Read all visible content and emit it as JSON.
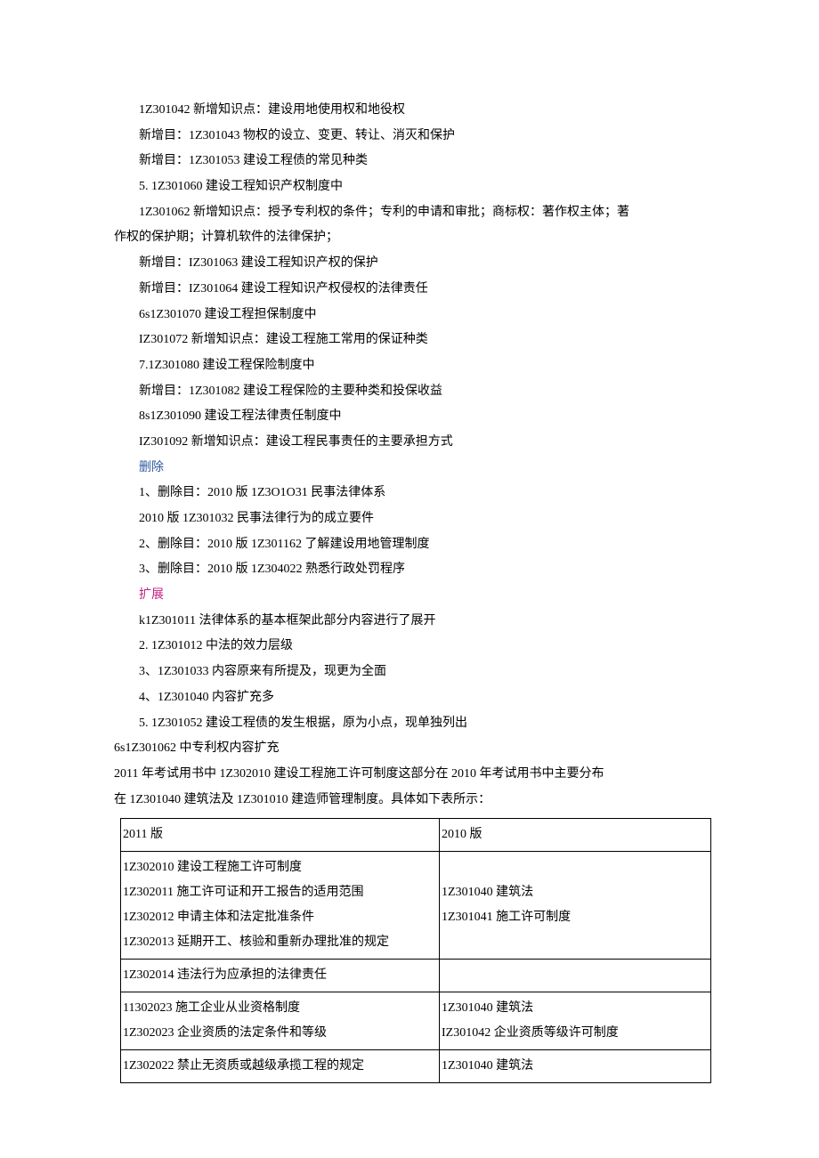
{
  "lines": [
    {
      "text": "1Z301042 新增知识点：建设用地使用权和地役权",
      "cls": "para"
    },
    {
      "text": "新增目：1Z301043 物权的设立、变更、转让、消灭和保护",
      "cls": "para"
    },
    {
      "text": "新增目：1Z301053 建设工程债的常见种类",
      "cls": "para"
    },
    {
      "text": "5.   1Z301060 建设工程知识产权制度中",
      "cls": "para"
    },
    {
      "text": "1Z301062 新增知识点：授予专利权的条件；专利的申请和审批；商标权：著作权主体；著",
      "cls": "para"
    },
    {
      "text": "作权的保护期；计算机软件的法律保护；",
      "cls": "para-noindent"
    },
    {
      "text": "新增目：IZ301063 建设工程知识产权的保护",
      "cls": "para"
    },
    {
      "text": "新增目：IZ301064 建设工程知识产权侵权的法律责任",
      "cls": "para"
    },
    {
      "text": "6s1Z301070 建设工程担保制度中",
      "cls": "para"
    },
    {
      "text": "IZ301072 新增知识点：建设工程施工常用的保证种类",
      "cls": "para"
    },
    {
      "text": "7.1Z301080 建设工程保险制度中",
      "cls": "para"
    },
    {
      "text": "新增目：1Z301082 建设工程保险的主要种类和投保收益",
      "cls": "para"
    },
    {
      "text": "8s1Z301090 建设工程法律责任制度中",
      "cls": "para"
    },
    {
      "text": "IZ301092 新增知识点：建设工程民事责任的主要承担方式",
      "cls": "para"
    },
    {
      "text": "删除",
      "cls": "para blue"
    },
    {
      "text": "1、删除目：2010 版 1Z3O1O31 民事法律体系",
      "cls": "para"
    },
    {
      "text": "2010 版 1Z301032 民事法律行为的成立要件",
      "cls": "para"
    },
    {
      "text": "2、删除目：2010 版 1Z301162 了解建设用地管理制度",
      "cls": "para"
    },
    {
      "text": "3、删除目：2010 版 1Z304022 熟悉行政处罚程序",
      "cls": "para"
    },
    {
      "text": "扩展",
      "cls": "para magenta"
    },
    {
      "text": "k1Z301011 法律体系的基本框架此部分内容进行了展开",
      "cls": "para"
    },
    {
      "text": "2.   1Z301012 中法的效力层级",
      "cls": "para"
    },
    {
      "text": "3、1Z301033 内容原来有所提及，现更为全面",
      "cls": "para"
    },
    {
      "text": "4、1Z301040 内容扩充多",
      "cls": "para"
    },
    {
      "text": "5.   1Z301052 建设工程债的发生根据，原为小点，现单独列出",
      "cls": "para"
    },
    {
      "text": "6s1Z301062 中专利权内容扩充",
      "cls": "para-noindent"
    },
    {
      "text": "2011 年考试用书中 1Z302010 建设工程施工许可制度这部分在 2010 年考试用书中主要分布",
      "cls": "para-noindent"
    },
    {
      "text": "在 1Z301040 建筑法及 1Z301010 建造师管理制度。具体如下表所示：",
      "cls": "para-noindent"
    }
  ],
  "table": {
    "header": {
      "left": "2011 版",
      "right": "2010 版"
    },
    "rows": [
      {
        "left": [
          "1Z302010 建设工程施工许可制度",
          "1Z302011 施工许可证和开工报告的适用范围",
          "1Z302012 申请主体和法定批准条件",
          "1Z302013 延期开工、核验和重新办理批准的规定"
        ],
        "right": [
          " ",
          "1Z301040 建筑法",
          "1Z301041 施工许可制度",
          " "
        ]
      },
      {
        "left": [
          "1Z302014 违法行为应承担的法律责任"
        ],
        "right": [
          ""
        ]
      },
      {
        "left": [
          "11302023 施工企业从业资格制度",
          "1Z302023 企业资质的法定条件和等级"
        ],
        "right": [
          "1Z301040 建筑法",
          "IZ301042 企业资质等级许可制度"
        ]
      },
      {
        "left": [
          "1Z302022 禁止无资质或越级承揽工程的规定"
        ],
        "right": [
          "1Z301040 建筑法"
        ]
      }
    ],
    "col_widths": [
      "54%",
      "46%"
    ]
  },
  "colors": {
    "text": "#000000",
    "blue": "#2e5aa0",
    "magenta": "#c02080",
    "background": "#ffffff",
    "border": "#000000"
  },
  "typography": {
    "font_family": "SimSun",
    "font_size_pt": 10.5,
    "line_height": 2.05
  }
}
